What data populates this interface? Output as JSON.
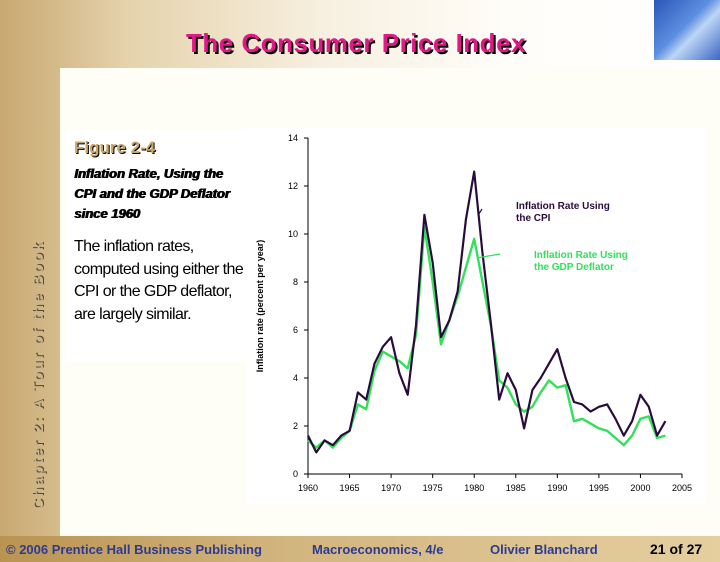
{
  "title": "The Consumer Price Index",
  "vertical_label": "Chapter 2: A Tour of the Book",
  "figure": {
    "number": "Figure 2-4",
    "caption": "Inflation Rate, Using the CPI and the GDP Deflator since 1960",
    "text": "The inflation rates, computed using either the CPI or the GDP deflator, are largely similar."
  },
  "footer": {
    "copyright": "© 2006 Prentice Hall Business Publishing",
    "book": "Macroeconomics, 4/e",
    "author": "Olivier Blanchard",
    "page": "21 of 27"
  },
  "colors": {
    "cpi": "#2a0c3c",
    "deflator": "#33e05a",
    "title": "#e0188a",
    "footer_text": "#2c3a94"
  },
  "chart_data": {
    "type": "line",
    "ylabel": "Inflation rate (percent per year)",
    "xlabel": "",
    "xlim": [
      1960,
      2005
    ],
    "ylim": [
      0,
      14
    ],
    "x_ticks": [
      1960,
      1965,
      1970,
      1975,
      1980,
      1985,
      1990,
      1995,
      2000,
      2005
    ],
    "y_ticks": [
      0,
      2,
      4,
      6,
      8,
      10,
      12,
      14
    ],
    "grid": false,
    "series": [
      {
        "name": "Inflation Rate Using the CPI",
        "color": "#2a0c3c",
        "x": [
          1960,
          1961,
          1962,
          1963,
          1964,
          1965,
          1966,
          1967,
          1968,
          1969,
          1970,
          1971,
          1972,
          1973,
          1974,
          1975,
          1976,
          1977,
          1978,
          1979,
          1980,
          1981,
          1982,
          1983,
          1984,
          1985,
          1986,
          1987,
          1988,
          1989,
          1990,
          1991,
          1992,
          1993,
          1994,
          1995,
          1996,
          1997,
          1998,
          1999,
          2000,
          2001,
          2002,
          2003
        ],
        "y": [
          1.6,
          0.9,
          1.4,
          1.2,
          1.6,
          1.8,
          3.4,
          3.1,
          4.6,
          5.3,
          5.7,
          4.2,
          3.3,
          6.2,
          10.8,
          8.8,
          5.7,
          6.4,
          7.6,
          10.6,
          12.6,
          9.2,
          6.3,
          3.1,
          4.2,
          3.5,
          1.9,
          3.5,
          4.0,
          4.6,
          5.2,
          4.0,
          3.0,
          2.9,
          2.6,
          2.8,
          2.9,
          2.3,
          1.6,
          2.2,
          3.3,
          2.8,
          1.6,
          2.2
        ]
      },
      {
        "name": "Inflation Rate Using the GDP Deflator",
        "color": "#33e05a",
        "x": [
          1960,
          1961,
          1962,
          1963,
          1964,
          1965,
          1966,
          1967,
          1968,
          1969,
          1970,
          1971,
          1972,
          1973,
          1974,
          1975,
          1976,
          1977,
          1978,
          1979,
          1980,
          1981,
          1982,
          1983,
          1984,
          1985,
          1986,
          1987,
          1988,
          1989,
          1990,
          1991,
          1992,
          1993,
          1994,
          1995,
          1996,
          1997,
          1998,
          1999,
          2000,
          2001,
          2002,
          2003
        ],
        "y": [
          1.4,
          1.1,
          1.4,
          1.1,
          1.5,
          1.8,
          2.9,
          2.7,
          4.3,
          5.1,
          4.9,
          4.7,
          4.4,
          5.8,
          10.3,
          8.0,
          5.4,
          6.4,
          7.4,
          8.6,
          9.8,
          8.0,
          6.2,
          3.9,
          3.6,
          2.9,
          2.6,
          2.8,
          3.4,
          3.9,
          3.6,
          3.7,
          2.2,
          2.3,
          2.1,
          1.9,
          1.8,
          1.5,
          1.2,
          1.6,
          2.3,
          2.4,
          1.5,
          1.6
        ]
      }
    ],
    "annotations": [
      {
        "text_lines": [
          "Inflation Rate Using",
          "the CPI"
        ],
        "series": 0,
        "point_x": 1980.5,
        "point_y": 10.8
      },
      {
        "text_lines": [
          "Inflation Rate Using",
          "the GDP Deflator"
        ],
        "series": 1,
        "point_x": 1980.3,
        "point_y": 9.0
      }
    ]
  }
}
